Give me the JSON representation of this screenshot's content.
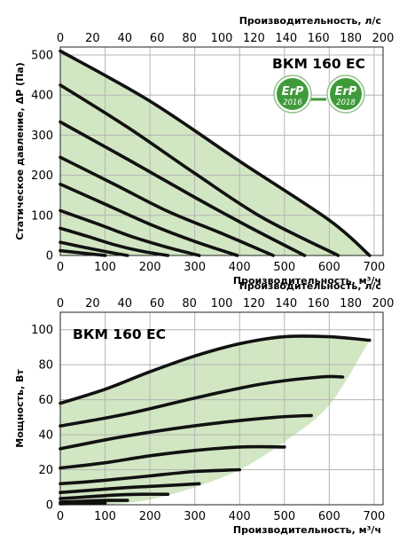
{
  "colors": {
    "area_fill": "#d1e6c2",
    "curve": "#111111",
    "grid": "#b5b5b5",
    "badge_green": "#3f9b3a"
  },
  "badges": [
    {
      "text": "ErP",
      "year": "2016"
    },
    {
      "text": "ErP",
      "year": "2018"
    }
  ],
  "chart_data": [
    {
      "type": "line",
      "model_label": "ВКМ 160 EC",
      "top_axis_label": "Производительность, л/с",
      "top_ticks": [
        0,
        20,
        40,
        60,
        80,
        100,
        120,
        140,
        160,
        180,
        200
      ],
      "top_range": [
        0,
        200
      ],
      "xlabel": "Производительность, м³/ч",
      "ylabel": "Статическое давление, ΔP (Па)",
      "xticks": [
        0,
        100,
        200,
        300,
        400,
        500,
        600,
        700
      ],
      "yticks": [
        0,
        100,
        200,
        300,
        400,
        500
      ],
      "xlim": [
        0,
        720
      ],
      "ylim": [
        0,
        520
      ],
      "grid": true,
      "series": [
        {
          "x": [
            0,
            200,
            400,
            600,
            690
          ],
          "y": [
            510,
            385,
            235,
            88,
            0
          ]
        },
        {
          "x": [
            0,
            150,
            300,
            450,
            620
          ],
          "y": [
            425,
            320,
            205,
            95,
            0
          ]
        },
        {
          "x": [
            0,
            150,
            300,
            420,
            545
          ],
          "y": [
            333,
            240,
            145,
            72,
            0
          ]
        },
        {
          "x": [
            0,
            120,
            240,
            360,
            475
          ],
          "y": [
            245,
            178,
            110,
            55,
            0
          ]
        },
        {
          "x": [
            0,
            100,
            200,
            300,
            395
          ],
          "y": [
            178,
            128,
            78,
            35,
            0
          ]
        },
        {
          "x": [
            0,
            80,
            160,
            240,
            310
          ],
          "y": [
            112,
            80,
            47,
            20,
            0
          ]
        },
        {
          "x": [
            0,
            60,
            120,
            180,
            240
          ],
          "y": [
            68,
            48,
            27,
            11,
            0
          ]
        },
        {
          "x": [
            0,
            50,
            100,
            150
          ],
          "y": [
            33,
            21,
            10,
            0
          ]
        },
        {
          "x": [
            0,
            50,
            100
          ],
          "y": [
            12,
            6,
            0
          ]
        }
      ]
    },
    {
      "type": "line",
      "model_label": "ВКМ 160 EC",
      "top_axis_label": "Производительность, л/с",
      "top_ticks": [
        0,
        20,
        40,
        60,
        80,
        100,
        120,
        140,
        160,
        180,
        200
      ],
      "top_range": [
        0,
        200
      ],
      "xlabel": "Производительность, м³/ч",
      "ylabel": "Мощность, Вт",
      "xticks": [
        0,
        100,
        200,
        300,
        400,
        500,
        600,
        700
      ],
      "yticks": [
        0,
        20,
        40,
        60,
        80,
        100
      ],
      "xlim": [
        0,
        720
      ],
      "ylim": [
        0,
        110
      ],
      "grid": true,
      "area_upper": {
        "x": [
          0,
          100,
          200,
          300,
          400,
          500,
          600,
          690
        ],
        "y": [
          58,
          66,
          76,
          85,
          92,
          96,
          96,
          94
        ]
      },
      "area_lower": {
        "x": [
          0,
          100,
          200,
          300,
          400,
          500,
          600,
          690
        ],
        "y": [
          0,
          0,
          3,
          10,
          20,
          36,
          57,
          94
        ]
      },
      "series": [
        {
          "x": [
            0,
            100,
            200,
            300,
            400,
            500,
            600,
            690
          ],
          "y": [
            58,
            66,
            76,
            85,
            92,
            96,
            96,
            94
          ]
        },
        {
          "x": [
            0,
            150,
            300,
            450,
            580,
            630
          ],
          "y": [
            45,
            52,
            61,
            69,
            73,
            73
          ]
        },
        {
          "x": [
            0,
            120,
            240,
            360,
            480,
            560
          ],
          "y": [
            32,
            38,
            43,
            47,
            50,
            51
          ]
        },
        {
          "x": [
            0,
            100,
            200,
            300,
            400,
            500
          ],
          "y": [
            21,
            24,
            28,
            31,
            33,
            33
          ]
        },
        {
          "x": [
            0,
            100,
            200,
            300,
            400
          ],
          "y": [
            12,
            14,
            16.5,
            19,
            20
          ]
        },
        {
          "x": [
            0,
            80,
            160,
            240,
            310
          ],
          "y": [
            7,
            8.5,
            10,
            11,
            12
          ]
        },
        {
          "x": [
            0,
            60,
            120,
            180,
            240
          ],
          "y": [
            3.5,
            4.5,
            5.5,
            6,
            6
          ]
        },
        {
          "x": [
            0,
            50,
            100,
            150
          ],
          "y": [
            1.5,
            2,
            2.5,
            2.5
          ]
        },
        {
          "x": [
            0,
            50,
            100
          ],
          "y": [
            0.5,
            0.8,
            1
          ]
        }
      ]
    }
  ]
}
